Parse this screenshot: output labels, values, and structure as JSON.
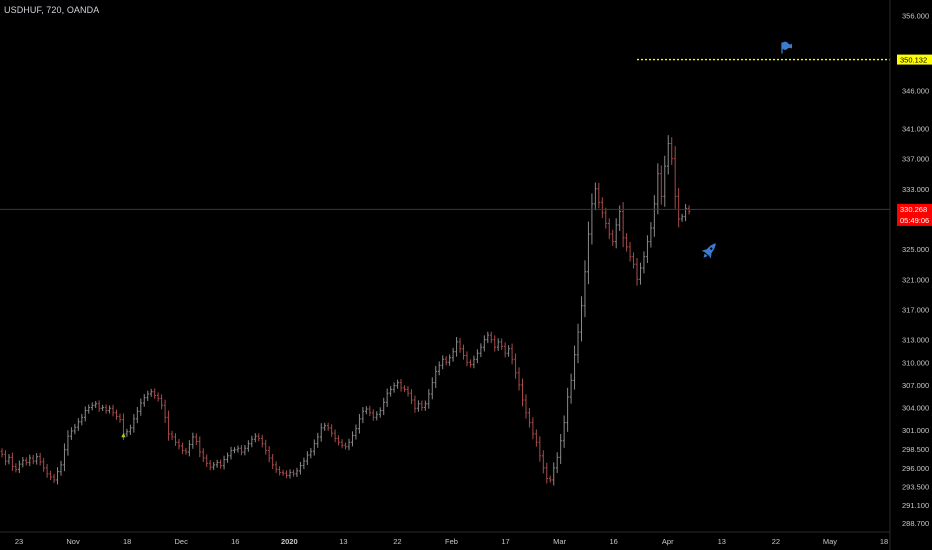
{
  "header": {
    "symbol_title": "USDHUF, 720, OANDA"
  },
  "colors": {
    "background": "#000000",
    "text": "#c8c8c8",
    "axis_line": "#2a2a2a",
    "bar_up": "#8a8a8a",
    "bar_down": "#a84b4b",
    "price_line": "#363a45",
    "current_price_bg": "#ff0000",
    "target_line": "#ffff00",
    "target_label_bg": "#ffff00",
    "icon_blue": "#3d7bd0",
    "marker_green": "#9fd32c"
  },
  "chart_data": {
    "type": "ohlc",
    "symbol": "USDHUF",
    "interval": "720",
    "source": "OANDA",
    "y_axis": {
      "ticks": [
        "356.000",
        "346.000",
        "341.000",
        "337.000",
        "333.000",
        "325.000",
        "321.000",
        "317.000",
        "313.000",
        "310.000",
        "307.000",
        "304.000",
        "301.000",
        "298.500",
        "296.000",
        "293.500",
        "291.100",
        "288.700"
      ],
      "ylim": [
        287.5,
        357.5
      ]
    },
    "x_axis": {
      "labels": [
        {
          "text": "23",
          "bold": false
        },
        {
          "text": "Nov",
          "bold": false
        },
        {
          "text": "18",
          "bold": false
        },
        {
          "text": "Dec",
          "bold": false
        },
        {
          "text": "16",
          "bold": false
        },
        {
          "text": "2020",
          "bold": true
        },
        {
          "text": "13",
          "bold": false
        },
        {
          "text": "22",
          "bold": false
        },
        {
          "text": "Feb",
          "bold": false
        },
        {
          "text": "17",
          "bold": false
        },
        {
          "text": "Mar",
          "bold": false
        },
        {
          "text": "16",
          "bold": false
        },
        {
          "text": "Apr",
          "bold": false
        },
        {
          "text": "13",
          "bold": false
        },
        {
          "text": "22",
          "bold": false
        },
        {
          "text": "May",
          "bold": false
        },
        {
          "text": "18",
          "bold": false
        }
      ]
    },
    "closes": [
      297.8,
      296.9,
      297.4,
      296.2,
      295.8,
      296.5,
      297.0,
      296.7,
      297.3,
      296.9,
      297.5,
      296.8,
      296.0,
      295.2,
      294.8,
      294.4,
      295.5,
      296.4,
      298.4,
      300.2,
      300.9,
      301.4,
      302.1,
      302.7,
      303.6,
      304.0,
      304.3,
      304.5,
      303.9,
      304.0,
      303.6,
      303.9,
      303.3,
      302.8,
      302.4,
      300.5,
      300.8,
      301.3,
      302.5,
      303.5,
      304.6,
      305.3,
      305.8,
      306.1,
      305.6,
      305.2,
      304.3,
      302.7,
      300.5,
      300.1,
      299.4,
      298.9,
      298.3,
      298.1,
      299.1,
      300.1,
      299.5,
      298.1,
      297.3,
      296.6,
      296.1,
      296.4,
      296.7,
      296.3,
      297.1,
      297.6,
      298.3,
      298.4,
      298.6,
      298.1,
      298.6,
      299.2,
      299.8,
      300.2,
      299.9,
      299.2,
      298.3,
      297.3,
      296.4,
      295.8,
      295.4,
      295.3,
      295.0,
      295.4,
      295.2,
      295.6,
      296.3,
      296.9,
      297.7,
      298.2,
      299.2,
      300.1,
      301.3,
      301.6,
      301.3,
      300.6,
      299.9,
      299.4,
      299.0,
      298.8,
      299.4,
      300.3,
      301.2,
      302.5,
      303.5,
      303.8,
      303.3,
      302.7,
      303.1,
      303.6,
      304.7,
      305.9,
      306.4,
      306.9,
      307.3,
      306.6,
      306.4,
      305.9,
      305.0,
      303.9,
      304.5,
      304.0,
      304.5,
      305.8,
      307.3,
      308.8,
      309.6,
      310.4,
      310.0,
      310.6,
      311.4,
      312.7,
      311.8,
      310.9,
      310.0,
      309.7,
      310.4,
      311.2,
      312.0,
      313.0,
      313.6,
      313.0,
      312.0,
      312.7,
      312.1,
      311.2,
      311.8,
      310.4,
      308.6,
      307.0,
      305.0,
      303.3,
      302.0,
      300.5,
      299.4,
      297.6,
      296.0,
      294.6,
      294.4,
      296.0,
      297.4,
      299.6,
      302.0,
      305.4,
      307.6,
      311.0,
      314.0,
      317.5,
      322.0,
      327.0,
      331.0,
      333.0,
      331.2,
      329.8,
      328.4,
      327.0,
      326.0,
      328.2,
      330.0,
      326.5,
      325.3,
      324.0,
      323.0,
      321.0,
      322.5,
      324.0,
      326.0,
      327.8,
      331.0,
      335.0,
      332.0,
      336.0,
      339.0,
      337.0,
      332.0,
      329.0,
      329.3,
      330.4,
      330.0
    ],
    "markers": [
      {
        "type": "triangle-up",
        "index": 35,
        "price": 300.3
      }
    ],
    "current_price": {
      "value": "330.268",
      "countdown": "05:49:06",
      "price": 330.268
    },
    "target": {
      "label": "350.132",
      "price": 350.132,
      "from_index": 183,
      "has_flag": true
    },
    "annotations": [
      {
        "type": "rocket-icon",
        "index": 200,
        "price": 324.6
      }
    ],
    "grid": false,
    "legend": "none"
  }
}
